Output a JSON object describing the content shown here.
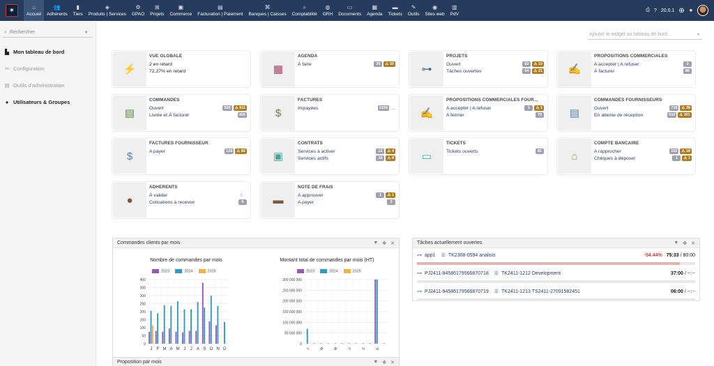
{
  "menu": [
    {
      "label": "Accueil",
      "icon": "home-icon",
      "glyph": "⌂"
    },
    {
      "label": "Adhérents",
      "icon": "members-icon",
      "glyph": "👥"
    },
    {
      "label": "Tiers",
      "icon": "building-icon",
      "glyph": "▮"
    },
    {
      "label": "Produits | Services",
      "icon": "cube-icon",
      "glyph": "◈"
    },
    {
      "label": "GPAO",
      "icon": "cogs-icon",
      "glyph": "⚙"
    },
    {
      "label": "Projets",
      "icon": "project-icon",
      "glyph": "⊞"
    },
    {
      "label": "Commerce",
      "icon": "suitcase-icon",
      "glyph": "▣"
    },
    {
      "label": "Facturation | Paiement",
      "icon": "invoice-icon",
      "glyph": "▤"
    },
    {
      "label": "Banques | Caisses",
      "icon": "bank-icon",
      "glyph": "⌘"
    },
    {
      "label": "Comptabilité",
      "icon": "search-dollar-icon",
      "glyph": "⌕"
    },
    {
      "label": "GRH",
      "icon": "hrm-icon",
      "glyph": "◍"
    },
    {
      "label": "Documents",
      "icon": "folder-icon",
      "glyph": "▭"
    },
    {
      "label": "Agenda",
      "icon": "calendar-icon",
      "glyph": "▦"
    },
    {
      "label": "Tickets",
      "icon": "ticket-icon",
      "glyph": "▬"
    },
    {
      "label": "Outils",
      "icon": "wrench-icon",
      "glyph": "✎"
    },
    {
      "label": "Sites web",
      "icon": "globe-icon",
      "glyph": "◉"
    },
    {
      "label": "PdV",
      "icon": "cashdesk-icon",
      "glyph": "▥"
    }
  ],
  "topright": {
    "version": "20.0.1"
  },
  "sidebar": {
    "search_placeholder": "Rechercher",
    "items": [
      {
        "label": "Mon tableau de bord",
        "icon": "chart-icon",
        "glyph": "▙",
        "bold": true
      },
      {
        "label": "Configuration",
        "icon": "tools-icon",
        "glyph": "✂",
        "bold": false
      },
      {
        "label": "Outils d'administration",
        "icon": "server-icon",
        "glyph": "▤",
        "bold": false
      },
      {
        "label": "Utilisateurs & Groupes",
        "icon": "user-icon",
        "glyph": "●",
        "bold": true
      }
    ]
  },
  "widget_select": "Ajouter le widget au tableau de bord...",
  "cards": [
    {
      "title": "VUE GLOBALE",
      "icon": "alert-bolt-icon",
      "glyph": "⚡",
      "color": "#c0262d",
      "rows": [
        {
          "label": "2 en retard",
          "plain": true
        },
        {
          "label": "72,27% en retard",
          "plain": true
        }
      ]
    },
    {
      "title": "AGENDA",
      "icon": "calendar-icon",
      "glyph": "▦",
      "color": "#a6406d",
      "rows": [
        {
          "label": "À faire",
          "badge": "20",
          "warn": "20"
        }
      ]
    },
    {
      "title": "PROJETS",
      "icon": "project-icon",
      "glyph": "⊶",
      "color": "#476b9b",
      "rows": [
        {
          "label": "Ouvert",
          "badge": "62",
          "warn": "10"
        },
        {
          "label": "Tâches ouvertes",
          "badge": "54",
          "warn": "21"
        }
      ]
    },
    {
      "title": "PROPOSITIONS COMMERCIALES",
      "icon": "propal-icon",
      "glyph": "✍",
      "color": "#3c7a3c",
      "rows": [
        {
          "label": "A accepter | A refuser",
          "badge": "3"
        },
        {
          "label": "À facturer",
          "badge": "86"
        }
      ]
    },
    {
      "title": "COMMANDES",
      "icon": "order-icon",
      "glyph": "▤",
      "color": "#5a8a45",
      "rows": [
        {
          "label": "Ouvert",
          "badge": "926",
          "warn": "911"
        },
        {
          "label": "Livrée et À facturer",
          "badge": "426"
        }
      ]
    },
    {
      "title": "FACTURES",
      "icon": "invoice-icon",
      "glyph": "$",
      "color": "#5a8a45",
      "rows": [
        {
          "label": "Impayées",
          "badge": "2155",
          "ellipsis": "..."
        }
      ]
    },
    {
      "title": "PROPOSITIONS COMMERCIALES FOUR...",
      "icon": "supplier-propal-icon",
      "glyph": "✍",
      "color": "#5582a8",
      "rows": [
        {
          "label": "A accepter | A refuser",
          "badge": "1",
          "warn": "1"
        },
        {
          "label": "A fermer",
          "badge": "79"
        }
      ]
    },
    {
      "title": "COMMANDES FOURNISSEURS",
      "icon": "supplier-order-icon",
      "glyph": "▤",
      "color": "#5582a8",
      "rows": [
        {
          "label": "Ouvert",
          "badge": "718",
          "warn": "38"
        },
        {
          "label": "En attente de réception",
          "badge": "910",
          "warn": "301"
        }
      ]
    },
    {
      "title": "FACTURES FOURNISSEUR",
      "icon": "supplier-invoice-icon",
      "glyph": "$",
      "color": "#5582a8",
      "rows": [
        {
          "label": "A payer",
          "badge": "126",
          "warn": "82"
        }
      ]
    },
    {
      "title": "CONTRATS",
      "icon": "contract-icon",
      "glyph": "▣",
      "color": "#45a59a",
      "rows": [
        {
          "label": "Services à activer",
          "badge": "12",
          "warn": "4"
        },
        {
          "label": "Services actifs",
          "badge": "16",
          "warn": "8"
        }
      ]
    },
    {
      "title": "TICKETS",
      "icon": "ticket-icon",
      "glyph": "▭",
      "color": "#3fb59e",
      "rows": [
        {
          "label": "Tickets ouverts",
          "badge": "81"
        }
      ]
    },
    {
      "title": "COMPTE BANCAIRE",
      "icon": "bank-icon",
      "glyph": "⌂",
      "color": "#a49a58",
      "rows": [
        {
          "label": "A rapprocher",
          "badge": "152",
          "warn": "18"
        },
        {
          "label": "Chèques à déposer",
          "badge": "1",
          "warn": "1"
        }
      ]
    },
    {
      "title": "ADHÉRENTS",
      "icon": "member-icon",
      "glyph": "●",
      "color": "#7a5a45",
      "rows": [
        {
          "label": "À valider",
          "zero": "0"
        },
        {
          "label": "Cotisations à recevoir",
          "badge": "6"
        }
      ]
    },
    {
      "title": "NOTE DE FRAIS",
      "icon": "wallet-icon",
      "glyph": "▬",
      "color": "#7a5a45",
      "rows": [
        {
          "label": "A approuver",
          "badge": "1",
          "warn": "1"
        },
        {
          "label": "A payer",
          "badge": "3"
        }
      ]
    }
  ],
  "panel_orders": {
    "title": "Commandes clients par mois"
  },
  "panel_tasks": {
    "title": "Tâches actuellement ouvertes",
    "tasks": [
      {
        "project": "app1",
        "task": "TK2308-0594 analisis",
        "pct": "-94.44%",
        "dur": "75:33",
        "total": "80:00",
        "progress": 0.944
      },
      {
        "project": "PJ2411-945861795668​70718",
        "task": "TK2411-1212 Development",
        "dur": "37:00",
        "total": "--:--"
      },
      {
        "project": "PJ2411-945861795668​70719",
        "task": "TK2411-1213 TS2411-27091582451",
        "dur": "06:00",
        "total": "--:--"
      }
    ]
  },
  "panel_proposals": {
    "title": "Proposition par mois"
  },
  "chart_data": [
    {
      "type": "bar",
      "title": "Nombre de commandes par mois",
      "categories": [
        "J",
        "F",
        "M",
        "A",
        "M",
        "J",
        "J",
        "A",
        "S",
        "O",
        "N",
        "D"
      ],
      "ylim": [
        0,
        400
      ],
      "yticks": [
        0,
        50,
        100,
        150,
        200,
        250,
        300,
        350,
        400
      ],
      "series": [
        {
          "name": "2023",
          "color": "#9b59b6",
          "values": [
            75,
            80,
            75,
            95,
            75,
            70,
            80,
            80,
            380,
            140,
            115,
            0
          ]
        },
        {
          "name": "2024",
          "color": "#2f9bbf",
          "values": [
            205,
            190,
            240,
            235,
            265,
            215,
            215,
            260,
            225,
            300,
            235,
            135
          ]
        },
        {
          "name": "2025",
          "color": "#f5b049",
          "values": [
            115,
            0,
            0,
            0,
            0,
            0,
            0,
            0,
            0,
            0,
            0,
            0
          ]
        }
      ]
    },
    {
      "type": "bar",
      "title": "Montant total de commandes par mois (HT)",
      "categories": [
        "J",
        "F",
        "M",
        "A",
        "M",
        "J",
        "J",
        "A",
        "S",
        "O",
        "N",
        "D"
      ],
      "xticks": [
        "J",
        "M",
        "M",
        "J",
        "S",
        "N"
      ],
      "ylim": [
        0,
        300000000
      ],
      "yticks": [
        "0",
        "50 000 000",
        "100 000 000",
        "150 000 000",
        "200 000 000",
        "250 000 000",
        "300 000 000"
      ],
      "series": [
        {
          "name": "2023",
          "color": "#9b59b6",
          "values": [
            0,
            0,
            0,
            0,
            0,
            0,
            0,
            0,
            0,
            0,
            300000000,
            0
          ]
        },
        {
          "name": "2024",
          "color": "#2f9bbf",
          "values": [
            70000000,
            2000000,
            2000000,
            2000000,
            2000000,
            2000000,
            2000000,
            2000000,
            2000000,
            2000000,
            300000000,
            2000000
          ]
        },
        {
          "name": "2025",
          "color": "#f5b049",
          "values": [
            1000000,
            0,
            0,
            0,
            0,
            0,
            0,
            0,
            0,
            0,
            0,
            0
          ]
        }
      ]
    }
  ]
}
